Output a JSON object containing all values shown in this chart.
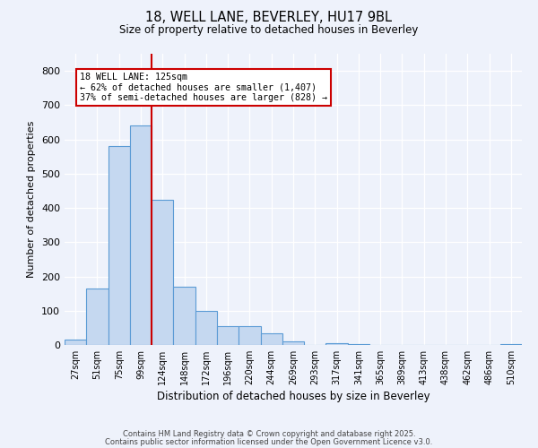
{
  "title1": "18, WELL LANE, BEVERLEY, HU17 9BL",
  "title2": "Size of property relative to detached houses in Beverley",
  "xlabel": "Distribution of detached houses by size in Beverley",
  "ylabel": "Number of detached properties",
  "categories": [
    "27sqm",
    "51sqm",
    "75sqm",
    "99sqm",
    "124sqm",
    "148sqm",
    "172sqm",
    "196sqm",
    "220sqm",
    "244sqm",
    "269sqm",
    "293sqm",
    "317sqm",
    "341sqm",
    "365sqm",
    "389sqm",
    "413sqm",
    "438sqm",
    "462sqm",
    "486sqm",
    "510sqm"
  ],
  "values": [
    17,
    165,
    580,
    640,
    425,
    170,
    100,
    55,
    55,
    35,
    10,
    0,
    5,
    3,
    0,
    0,
    0,
    0,
    0,
    0,
    3
  ],
  "bar_color": "#c5d8f0",
  "bar_edge_color": "#5b9bd5",
  "red_line_index": 4,
  "red_line_color": "#cc0000",
  "annotation_text": "18 WELL LANE: 125sqm\n← 62% of detached houses are smaller (1,407)\n37% of semi-detached houses are larger (828) →",
  "annotation_box_color": "#ffffff",
  "annotation_box_edge": "#cc0000",
  "ylim": [
    0,
    850
  ],
  "yticks": [
    0,
    100,
    200,
    300,
    400,
    500,
    600,
    700,
    800
  ],
  "footnote1": "Contains HM Land Registry data © Crown copyright and database right 2025.",
  "footnote2": "Contains public sector information licensed under the Open Government Licence v3.0.",
  "bg_color": "#eef2fb"
}
